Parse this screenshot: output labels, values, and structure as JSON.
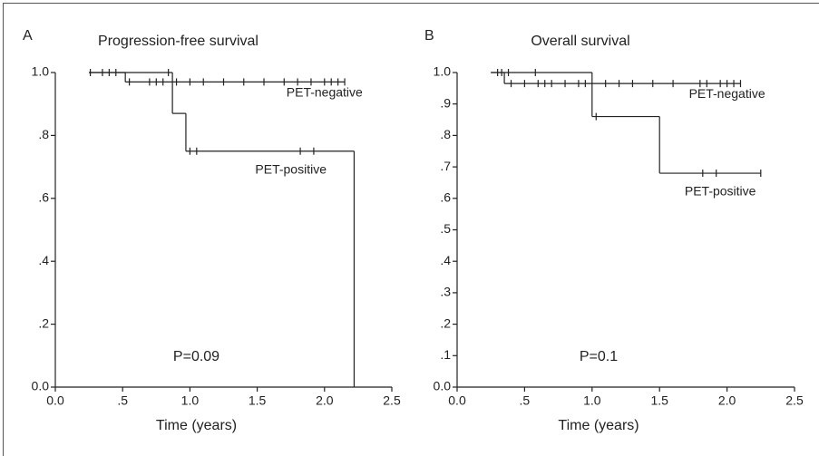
{
  "chart_data": [
    {
      "type": "step",
      "panel_label": "A",
      "title": "Progression-free survival",
      "xlabel": "Time (years)",
      "annotation": "P=0.09",
      "xlim": [
        0,
        2.5
      ],
      "ylim": [
        0,
        1
      ],
      "xticks": [
        {
          "value": 0,
          "label": "0.0"
        },
        {
          "value": 0.5,
          "label": ".5"
        },
        {
          "value": 1,
          "label": "1.0"
        },
        1.5,
        {
          "value": 2,
          "label": "2.0"
        },
        2.5
      ],
      "yticks": [
        {
          "value": 0,
          "label": "0.0"
        },
        {
          "value": 0.2,
          "label": ".2"
        },
        {
          "value": 0.4,
          "label": ".4"
        },
        {
          "value": 0.6,
          "label": ".6"
        },
        {
          "value": 0.8,
          "label": ".8"
        },
        {
          "value": 1,
          "label": "1.0"
        }
      ],
      "series": [
        {
          "name": "PET-negative",
          "color": "#222222",
          "x": [
            0.25,
            0.52
          ],
          "values": [
            1.0,
            0.97
          ],
          "censored_x": [
            0.26,
            0.35,
            0.4,
            0.45,
            0.55,
            0.7,
            0.75,
            0.8,
            0.9,
            1.0,
            1.1,
            1.25,
            1.4,
            1.55,
            1.7,
            1.8,
            1.9,
            2.0,
            2.05,
            2.1,
            2.15
          ],
          "censored_values": [
            1.0,
            1.0,
            1.0,
            1.0,
            0.97,
            0.97,
            0.97,
            0.97,
            0.97,
            0.97,
            0.97,
            0.97,
            0.97,
            0.97,
            0.97,
            0.97,
            0.97,
            0.97,
            0.97,
            0.97,
            0.97
          ]
        },
        {
          "name": "PET-positive",
          "color": "#222222",
          "x": [
            0.25,
            0.87,
            0.97,
            2.22
          ],
          "values": [
            1.0,
            0.87,
            0.75,
            0.0
          ],
          "censored_x": [
            0.84,
            1.0,
            1.05,
            1.82,
            1.92
          ],
          "censored_values": [
            1.0,
            0.75,
            0.75,
            0.75,
            0.75
          ]
        }
      ]
    },
    {
      "type": "step",
      "panel_label": "B",
      "title": "Overall survival",
      "xlabel": "Time (years)",
      "annotation": "P=0.1",
      "xlim": [
        0,
        2.5
      ],
      "ylim": [
        0,
        1
      ],
      "xticks": [
        {
          "value": 0,
          "label": "0.0"
        },
        {
          "value": 0.5,
          "label": ".5"
        },
        {
          "value": 1,
          "label": "1.0"
        },
        1.5,
        {
          "value": 2,
          "label": "2.0"
        },
        2.5
      ],
      "yticks": [
        {
          "value": 0,
          "label": "0.0"
        },
        {
          "value": 0.1,
          "label": ".1"
        },
        {
          "value": 0.2,
          "label": ".2"
        },
        {
          "value": 0.3,
          "label": ".3"
        },
        {
          "value": 0.4,
          "label": ".4"
        },
        {
          "value": 0.5,
          "label": ".5"
        },
        {
          "value": 0.6,
          "label": ".6"
        },
        {
          "value": 0.7,
          "label": ".7"
        },
        {
          "value": 0.8,
          "label": ".8"
        },
        {
          "value": 0.9,
          "label": ".9"
        },
        {
          "value": 1,
          "label": "1.0"
        }
      ],
      "series": [
        {
          "name": "PET-negative",
          "color": "#222222",
          "x": [
            0.25,
            0.35
          ],
          "values": [
            1.0,
            0.965
          ],
          "censored_x": [
            0.3,
            0.33,
            0.4,
            0.5,
            0.6,
            0.65,
            0.7,
            0.8,
            0.9,
            0.95,
            1.1,
            1.2,
            1.3,
            1.45,
            1.6,
            1.8,
            1.85,
            1.95,
            2.0,
            2.05,
            2.1
          ],
          "censored_values": [
            1.0,
            1.0,
            0.965,
            0.965,
            0.965,
            0.965,
            0.965,
            0.965,
            0.965,
            0.965,
            0.965,
            0.965,
            0.965,
            0.965,
            0.965,
            0.965,
            0.965,
            0.965,
            0.965,
            0.965,
            0.965
          ]
        },
        {
          "name": "PET-positive",
          "color": "#222222",
          "x": [
            0.25,
            1.0,
            1.5
          ],
          "values": [
            1.0,
            0.86,
            0.68
          ],
          "censored_x": [
            0.38,
            0.58,
            1.03,
            1.82,
            1.92,
            2.25
          ],
          "censored_values": [
            1.0,
            1.0,
            0.86,
            0.68,
            0.68,
            0.68
          ]
        }
      ]
    }
  ]
}
